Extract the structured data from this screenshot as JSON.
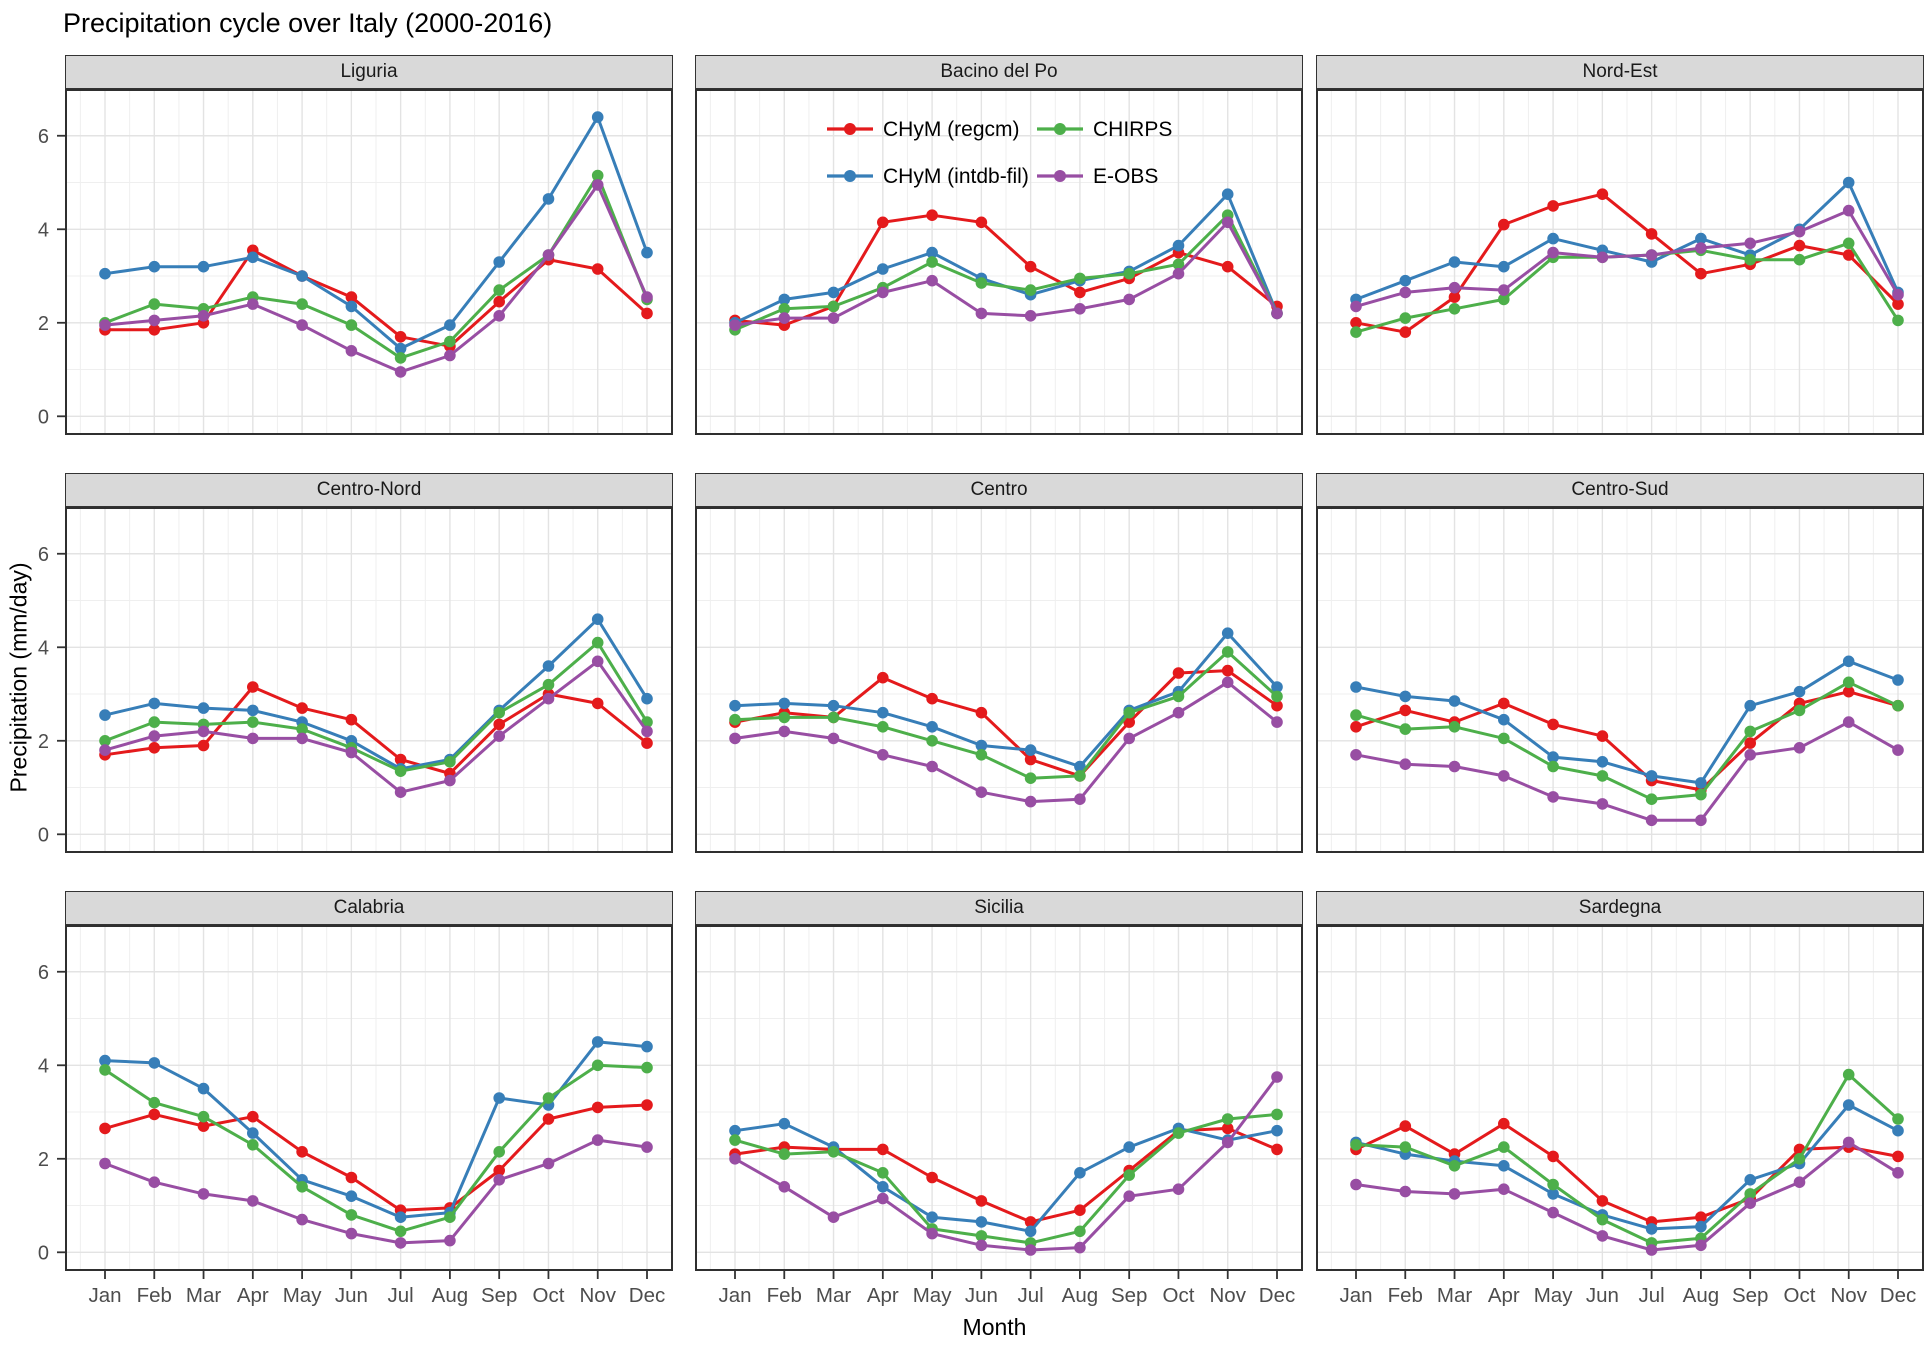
{
  "title": "Precipitation cycle over Italy (2000-2016)",
  "axes": {
    "x_title": "Month",
    "y_title": "Precipitation (mm/day)",
    "y_tick_labels": [
      "0",
      "2",
      "4",
      "6"
    ]
  },
  "legend": {
    "position": "inside Bacino del Po panel, two columns",
    "items": [
      {
        "label": "CHyM (regcm)",
        "color": "#E41A1C"
      },
      {
        "label": "CHyM (intdb-fil)",
        "color": "#377EB8"
      },
      {
        "label": "CHIRPS",
        "color": "#4DAF4A"
      },
      {
        "label": "E-OBS",
        "color": "#984EA3"
      }
    ]
  },
  "chart_data": {
    "type": "line",
    "title": "Precipitation cycle over Italy (2000-2016)",
    "xlabel": "Month",
    "ylabel": "Precipitation (mm/day)",
    "x": [
      "Jan",
      "Feb",
      "Mar",
      "Apr",
      "May",
      "Jun",
      "Jul",
      "Aug",
      "Sep",
      "Oct",
      "Nov",
      "Dec"
    ],
    "ylim": [
      -0.4,
      7.0
    ],
    "y_major_ticks": [
      0,
      2,
      4,
      6
    ],
    "y_minor_ticks": [
      1,
      3,
      5
    ],
    "grid": "on",
    "facet_layout": [
      "3 rows",
      "3 cols"
    ],
    "series": [
      {
        "name": "CHyM (regcm)",
        "color": "#E41A1C"
      },
      {
        "name": "CHyM (intdb-fil)",
        "color": "#377EB8"
      },
      {
        "name": "CHIRPS",
        "color": "#4DAF4A"
      },
      {
        "name": "E-OBS",
        "color": "#984EA3"
      }
    ],
    "panels": [
      {
        "name": "Liguria",
        "values": {
          "CHyM (regcm)": [
            1.85,
            1.85,
            2.0,
            3.55,
            3.0,
            2.55,
            1.7,
            1.5,
            2.45,
            3.35,
            3.15,
            2.2
          ],
          "CHyM (intdb-fil)": [
            3.05,
            3.2,
            3.2,
            3.4,
            3.0,
            2.35,
            1.45,
            1.95,
            3.3,
            4.65,
            6.4,
            3.5
          ],
          "CHIRPS": [
            2.0,
            2.4,
            2.3,
            2.55,
            2.4,
            1.95,
            1.25,
            1.6,
            2.7,
            3.45,
            5.15,
            2.5
          ],
          "E-OBS": [
            1.95,
            2.05,
            2.15,
            2.4,
            1.95,
            1.4,
            0.95,
            1.3,
            2.15,
            3.45,
            4.95,
            2.55
          ]
        }
      },
      {
        "name": "Bacino del Po",
        "values": {
          "CHyM (regcm)": [
            2.05,
            1.95,
            2.35,
            4.15,
            4.3,
            4.15,
            3.2,
            2.65,
            2.95,
            3.5,
            3.2,
            2.35
          ],
          "CHyM (intdb-fil)": [
            2.0,
            2.5,
            2.65,
            3.15,
            3.5,
            2.95,
            2.6,
            2.9,
            3.1,
            3.65,
            4.75,
            2.2
          ],
          "CHIRPS": [
            1.85,
            2.3,
            2.35,
            2.75,
            3.3,
            2.85,
            2.7,
            2.95,
            3.05,
            3.25,
            4.3,
            2.2
          ],
          "E-OBS": [
            1.95,
            2.1,
            2.1,
            2.65,
            2.9,
            2.2,
            2.15,
            2.3,
            2.5,
            3.05,
            4.15,
            2.2
          ]
        }
      },
      {
        "name": "Nord-Est",
        "values": {
          "CHyM (regcm)": [
            2.0,
            1.8,
            2.55,
            4.1,
            4.5,
            4.75,
            3.9,
            3.05,
            3.25,
            3.65,
            3.45,
            2.4
          ],
          "CHyM (intdb-fil)": [
            2.5,
            2.9,
            3.3,
            3.2,
            3.8,
            3.55,
            3.3,
            3.8,
            3.45,
            4.0,
            5.0,
            2.65
          ],
          "CHIRPS": [
            1.8,
            2.1,
            2.3,
            2.5,
            3.4,
            3.4,
            3.45,
            3.55,
            3.35,
            3.35,
            3.7,
            2.05
          ],
          "E-OBS": [
            2.35,
            2.65,
            2.75,
            2.7,
            3.5,
            3.4,
            3.45,
            3.6,
            3.7,
            3.95,
            4.4,
            2.6
          ]
        }
      },
      {
        "name": "Centro-Nord",
        "values": {
          "CHyM (regcm)": [
            1.7,
            1.85,
            1.9,
            3.15,
            2.7,
            2.45,
            1.6,
            1.3,
            2.35,
            3.0,
            2.8,
            1.95
          ],
          "CHyM (intdb-fil)": [
            2.55,
            2.8,
            2.7,
            2.65,
            2.4,
            2.0,
            1.4,
            1.6,
            2.65,
            3.6,
            4.6,
            2.9
          ],
          "CHIRPS": [
            2.0,
            2.4,
            2.35,
            2.4,
            2.25,
            1.85,
            1.35,
            1.55,
            2.6,
            3.2,
            4.1,
            2.4
          ],
          "E-OBS": [
            1.8,
            2.1,
            2.2,
            2.05,
            2.05,
            1.75,
            0.9,
            1.15,
            2.1,
            2.9,
            3.7,
            2.2
          ]
        }
      },
      {
        "name": "Centro",
        "values": {
          "CHyM (regcm)": [
            2.4,
            2.6,
            2.5,
            3.35,
            2.9,
            2.6,
            1.6,
            1.25,
            2.4,
            3.45,
            3.5,
            2.75
          ],
          "CHyM (intdb-fil)": [
            2.75,
            2.8,
            2.75,
            2.6,
            2.3,
            1.9,
            1.8,
            1.45,
            2.65,
            3.05,
            4.3,
            3.15
          ],
          "CHIRPS": [
            2.45,
            2.5,
            2.5,
            2.3,
            2.0,
            1.7,
            1.2,
            1.25,
            2.6,
            2.95,
            3.9,
            2.95
          ],
          "E-OBS": [
            2.05,
            2.2,
            2.05,
            1.7,
            1.45,
            0.9,
            0.7,
            0.75,
            2.05,
            2.6,
            3.25,
            2.4
          ]
        }
      },
      {
        "name": "Centro-Sud",
        "values": {
          "CHyM (regcm)": [
            2.3,
            2.65,
            2.4,
            2.8,
            2.35,
            2.1,
            1.15,
            0.95,
            1.95,
            2.8,
            3.05,
            2.75
          ],
          "CHyM (intdb-fil)": [
            3.15,
            2.95,
            2.85,
            2.45,
            1.65,
            1.55,
            1.25,
            1.1,
            2.75,
            3.05,
            3.7,
            3.3
          ],
          "CHIRPS": [
            2.55,
            2.25,
            2.3,
            2.05,
            1.45,
            1.25,
            0.75,
            0.85,
            2.2,
            2.65,
            3.25,
            2.75
          ],
          "E-OBS": [
            1.7,
            1.5,
            1.45,
            1.25,
            0.8,
            0.65,
            0.3,
            0.3,
            1.7,
            1.85,
            2.4,
            1.8
          ]
        }
      },
      {
        "name": "Calabria",
        "values": {
          "CHyM (regcm)": [
            2.65,
            2.95,
            2.7,
            2.9,
            2.15,
            1.6,
            0.9,
            0.95,
            1.75,
            2.85,
            3.1,
            3.15
          ],
          "CHyM (intdb-fil)": [
            4.1,
            4.05,
            3.5,
            2.55,
            1.55,
            1.2,
            0.75,
            0.85,
            3.3,
            3.15,
            4.5,
            4.4
          ],
          "CHIRPS": [
            3.9,
            3.2,
            2.9,
            2.3,
            1.4,
            0.8,
            0.45,
            0.75,
            2.15,
            3.3,
            4.0,
            3.95
          ],
          "E-OBS": [
            1.9,
            1.5,
            1.25,
            1.1,
            0.7,
            0.4,
            0.2,
            0.25,
            1.55,
            1.9,
            2.4,
            2.25
          ]
        }
      },
      {
        "name": "Sicilia",
        "values": {
          "CHyM (regcm)": [
            2.1,
            2.25,
            2.2,
            2.2,
            1.6,
            1.1,
            0.65,
            0.9,
            1.75,
            2.6,
            2.65,
            2.2
          ],
          "CHyM (intdb-fil)": [
            2.6,
            2.75,
            2.25,
            1.4,
            0.75,
            0.65,
            0.45,
            1.7,
            2.25,
            2.65,
            2.4,
            2.6
          ],
          "CHIRPS": [
            2.4,
            2.1,
            2.15,
            1.7,
            0.5,
            0.35,
            0.2,
            0.45,
            1.65,
            2.55,
            2.85,
            2.95
          ],
          "E-OBS": [
            2.0,
            1.4,
            0.75,
            1.15,
            0.4,
            0.15,
            0.05,
            0.1,
            1.2,
            1.35,
            2.35,
            3.75
          ]
        }
      },
      {
        "name": "Sardegna",
        "values": {
          "CHyM (regcm)": [
            2.2,
            2.7,
            2.1,
            2.75,
            2.05,
            1.1,
            0.65,
            0.75,
            1.15,
            2.2,
            2.25,
            2.05
          ],
          "CHyM (intdb-fil)": [
            2.35,
            2.1,
            1.95,
            1.85,
            1.25,
            0.8,
            0.5,
            0.55,
            1.55,
            1.9,
            3.15,
            2.6
          ],
          "CHIRPS": [
            2.3,
            2.25,
            1.85,
            2.25,
            1.45,
            0.7,
            0.2,
            0.3,
            1.25,
            2.0,
            3.8,
            2.85
          ],
          "E-OBS": [
            1.45,
            1.3,
            1.25,
            1.35,
            0.85,
            0.35,
            0.05,
            0.15,
            1.05,
            1.5,
            2.35,
            1.7
          ]
        }
      }
    ]
  }
}
